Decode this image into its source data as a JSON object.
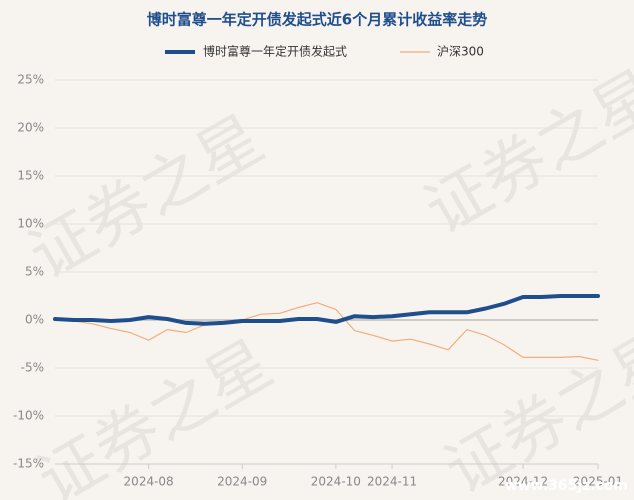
{
  "chart_data": {
    "type": "line",
    "title": "博时富尊一年定开债发起式近6个月累计收益率走势",
    "watermark": "证券之星",
    "watermark_url": "www.365jz.com",
    "categories": [
      null,
      null,
      null,
      null,
      null,
      "2024-08",
      null,
      null,
      null,
      null,
      "2024-09",
      null,
      null,
      null,
      null,
      "2024-10",
      null,
      null,
      "2024-11",
      null,
      null,
      null,
      null,
      null,
      null,
      "2024-12",
      null,
      null,
      null,
      "2025-01"
    ],
    "series": [
      {
        "name": "博时富尊一年定开债发起式",
        "color": "#1f4e8c",
        "width": 4,
        "values": [
          0.1,
          0.0,
          0.0,
          -0.1,
          0.0,
          0.3,
          0.1,
          -0.3,
          -0.4,
          -0.3,
          -0.1,
          -0.1,
          -0.1,
          0.1,
          0.1,
          -0.2,
          0.4,
          0.3,
          0.4,
          0.6,
          0.8,
          0.8,
          0.8,
          1.2,
          1.7,
          2.4,
          2.4,
          2.5,
          2.5,
          2.5
        ]
      },
      {
        "name": "沪深300",
        "color": "#f2ad7a",
        "width": 1.2,
        "values": [
          0.0,
          -0.1,
          -0.4,
          -0.9,
          -1.3,
          -2.1,
          -1.0,
          -1.3,
          -0.5,
          -0.3,
          0.0,
          0.6,
          0.7,
          1.3,
          1.8,
          1.1,
          -1.1,
          -1.6,
          -2.2,
          -2.0,
          -2.5,
          -3.1,
          -1.0,
          -1.6,
          -2.6,
          -3.9,
          -3.9,
          -3.9,
          -3.8,
          -4.2
        ]
      }
    ],
    "ylim": [
      -15,
      25
    ],
    "yticks": [
      {
        "value": -15,
        "label": "-15%"
      },
      {
        "value": -10,
        "label": "-10%"
      },
      {
        "value": -5,
        "label": "-5%"
      },
      {
        "value": 0,
        "label": "0%"
      },
      {
        "value": 5,
        "label": "5%"
      },
      {
        "value": 10,
        "label": "10%"
      },
      {
        "value": 15,
        "label": "15%"
      },
      {
        "value": 20,
        "label": "20%"
      },
      {
        "value": 25,
        "label": "25%"
      }
    ],
    "grid": true
  }
}
